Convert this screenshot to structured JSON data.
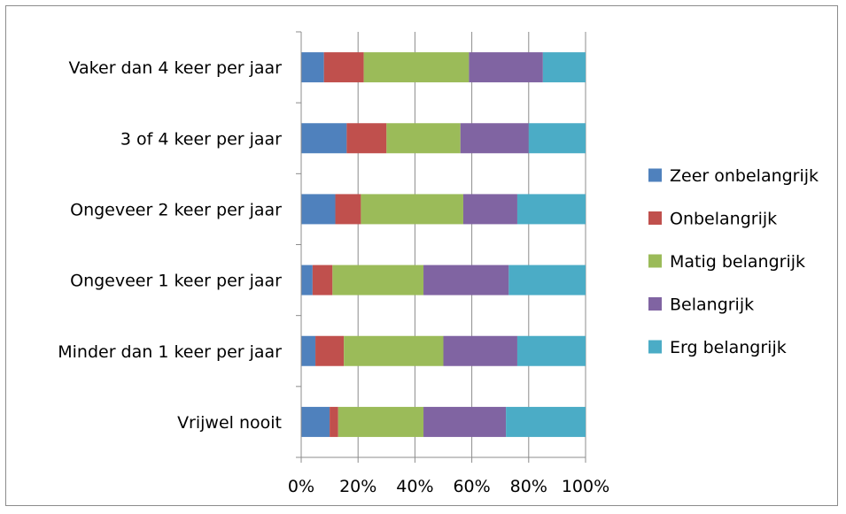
{
  "chart_data": {
    "type": "bar",
    "orientation": "horizontal",
    "stacked": "percent",
    "categories": [
      "Vaker dan 4 keer per jaar",
      "3 of 4 keer per jaar",
      "Ongeveer 2 keer per jaar",
      "Ongeveer 1 keer per jaar",
      "Minder dan 1 keer per jaar",
      "Vrijwel nooit"
    ],
    "series": [
      {
        "name": "Zeer onbelangrijk",
        "color": "#4F81BD",
        "values": [
          8,
          16,
          12,
          4,
          5,
          10
        ]
      },
      {
        "name": "Onbelangrijk",
        "color": "#C0504D",
        "values": [
          14,
          14,
          9,
          7,
          10,
          3
        ]
      },
      {
        "name": "Matig belangrijk",
        "color": "#9BBB59",
        "values": [
          37,
          26,
          36,
          32,
          35,
          30
        ]
      },
      {
        "name": "Belangrijk",
        "color": "#8064A2",
        "values": [
          26,
          24,
          19,
          30,
          26,
          29
        ]
      },
      {
        "name": "Erg belangrijk",
        "color": "#4BACC6",
        "values": [
          15,
          20,
          24,
          27,
          24,
          28
        ]
      }
    ],
    "xticks": [
      "0%",
      "20%",
      "40%",
      "60%",
      "80%",
      "100%"
    ],
    "xlim": [
      0,
      100
    ],
    "grid": "vertical",
    "legend_position": "right",
    "title": "",
    "xlabel": "",
    "ylabel": ""
  }
}
